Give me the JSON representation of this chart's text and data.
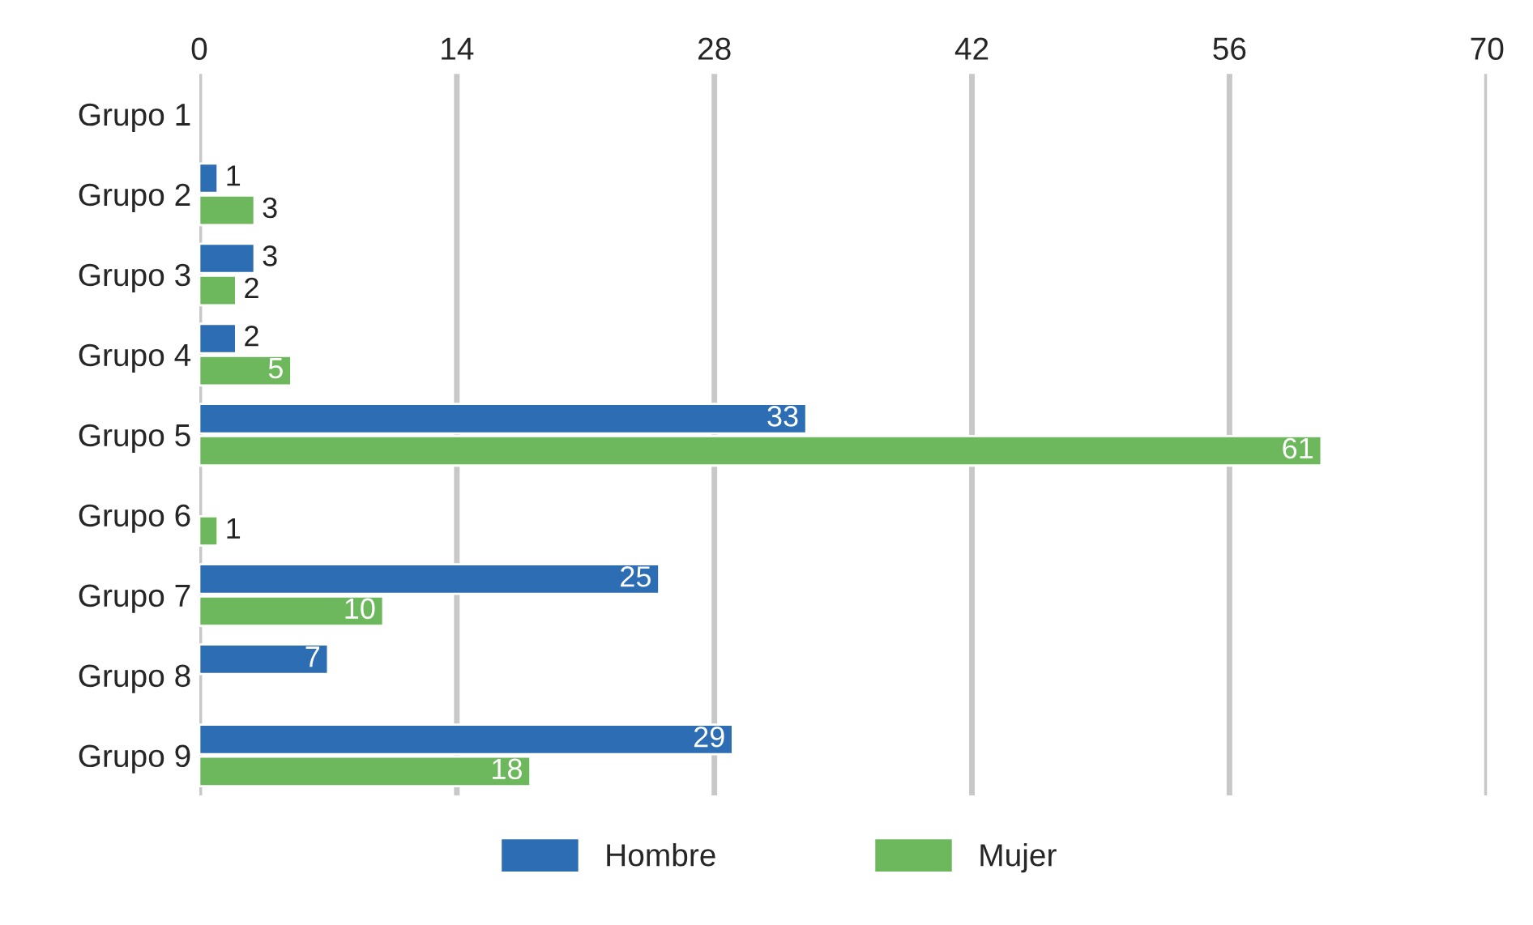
{
  "chart_data": {
    "type": "bar",
    "orientation": "horizontal",
    "categories": [
      "Grupo 1",
      "Grupo 2",
      "Grupo 3",
      "Grupo 4",
      "Grupo 5",
      "Grupo 6",
      "Grupo 7",
      "Grupo 8",
      "Grupo 9"
    ],
    "series": [
      {
        "name": "Hombre",
        "color": "#2c6db3",
        "values": [
          null,
          1,
          3,
          2,
          33,
          null,
          25,
          7,
          29
        ]
      },
      {
        "name": "Mujer",
        "color": "#6db85c",
        "values": [
          null,
          3,
          2,
          5,
          61,
          1,
          10,
          null,
          18
        ]
      }
    ],
    "xlim": [
      0,
      70
    ],
    "xticks": [
      0,
      14,
      28,
      42,
      56,
      70
    ],
    "grid": "x",
    "legend": "bottom",
    "data_labels": true
  }
}
